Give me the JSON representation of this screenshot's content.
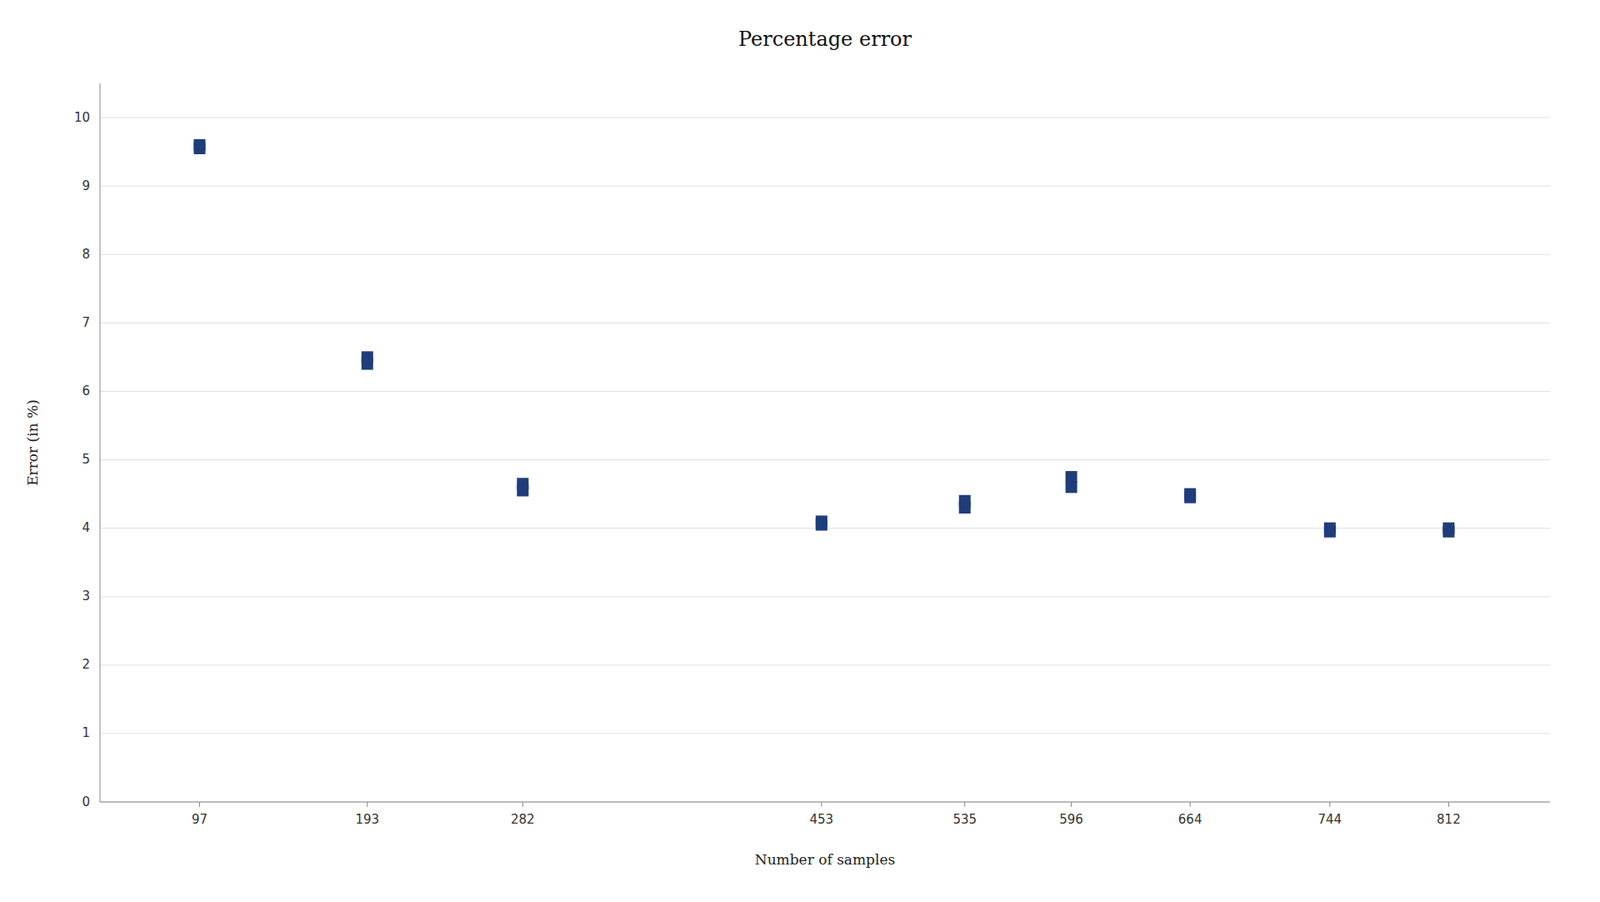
{
  "chart_data": {
    "type": "scatter",
    "title": "Percentage error",
    "xlabel": "Number of samples",
    "ylabel": "Error (in %)",
    "x": [
      97,
      97,
      193,
      193,
      282,
      282,
      453,
      453,
      535,
      535,
      596,
      596,
      664,
      664,
      744,
      744,
      812,
      812
    ],
    "values": [
      9.6,
      9.55,
      6.5,
      6.4,
      4.65,
      4.55,
      4.1,
      4.05,
      4.4,
      4.3,
      4.75,
      4.6,
      4.5,
      4.45,
      4.0,
      3.95,
      4.0,
      3.95
    ],
    "color": "#1F3D7A",
    "marker": "square",
    "xlim": [
      40,
      870
    ],
    "xticks": [
      97,
      193,
      282,
      453,
      535,
      596,
      664,
      744,
      812
    ],
    "ylim": [
      0,
      10.5
    ],
    "yticks": [
      0,
      1,
      2,
      3,
      4,
      5,
      6,
      7,
      8,
      9,
      10
    ],
    "grid": true
  }
}
